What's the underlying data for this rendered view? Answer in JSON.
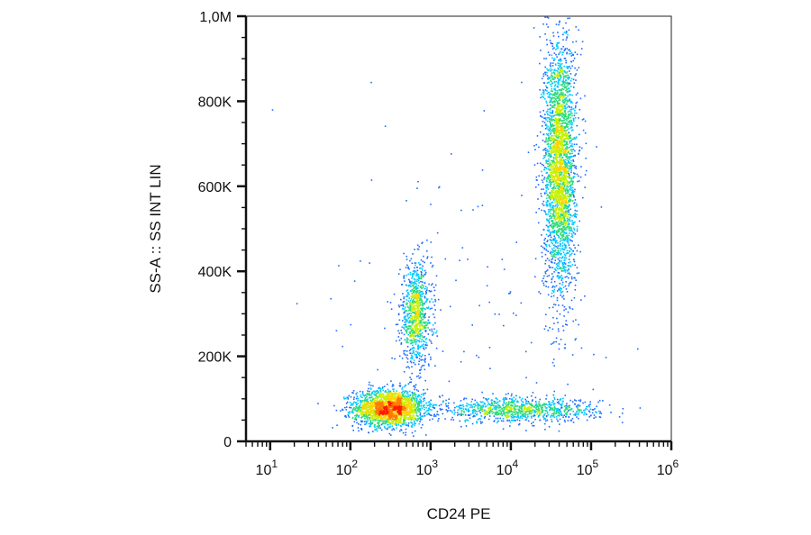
{
  "chart_data": {
    "type": "scatter",
    "subtype": "flow-cytometry density dot plot",
    "title": "",
    "xlabel": "CD24 PE",
    "ylabel": "SS-A :: SS INT LIN",
    "x_scale": "log",
    "xlim": [
      5,
      1000000
    ],
    "ylim": [
      0,
      1000000
    ],
    "x_ticks": [
      {
        "value": 10,
        "base": "10",
        "exp": "1"
      },
      {
        "value": 100,
        "base": "10",
        "exp": "2"
      },
      {
        "value": 1000,
        "base": "10",
        "exp": "3"
      },
      {
        "value": 10000,
        "base": "10",
        "exp": "4"
      },
      {
        "value": 100000,
        "base": "10",
        "exp": "5"
      },
      {
        "value": 1000000,
        "base": "10",
        "exp": "6"
      }
    ],
    "y_ticks": [
      {
        "value": 0,
        "label": "0"
      },
      {
        "value": 200000,
        "label": "200K"
      },
      {
        "value": 400000,
        "label": "400K"
      },
      {
        "value": 600000,
        "label": "600K"
      },
      {
        "value": 800000,
        "label": "800K"
      },
      {
        "value": 1000000,
        "label": "1,0M"
      }
    ],
    "grid": false,
    "legend": "none",
    "color_scale": [
      "#0000cc",
      "#1e6cff",
      "#00c8ff",
      "#2edb7a",
      "#c8f000",
      "#ffd400",
      "#ff7a00",
      "#ff1a00"
    ],
    "populations": [
      {
        "center_x": 300,
        "center_y": 80000,
        "spread_log_x": 0.22,
        "spread_y": 22000,
        "count": 2000
      },
      {
        "center_x": 650,
        "center_y": 300000,
        "spread_log_x": 0.1,
        "spread_y": 60000,
        "count": 900
      },
      {
        "center_x": 12000,
        "center_y": 75000,
        "spread_log_x": 0.5,
        "spread_y": 14000,
        "count": 1000
      },
      {
        "center_x": 40000,
        "center_y": 650000,
        "spread_log_x": 0.1,
        "spread_y": 150000,
        "count": 3000
      },
      {
        "center_x": 3000,
        "center_y": 400000,
        "spread_log_x": 0.9,
        "spread_y": 200000,
        "count": 120
      }
    ]
  }
}
